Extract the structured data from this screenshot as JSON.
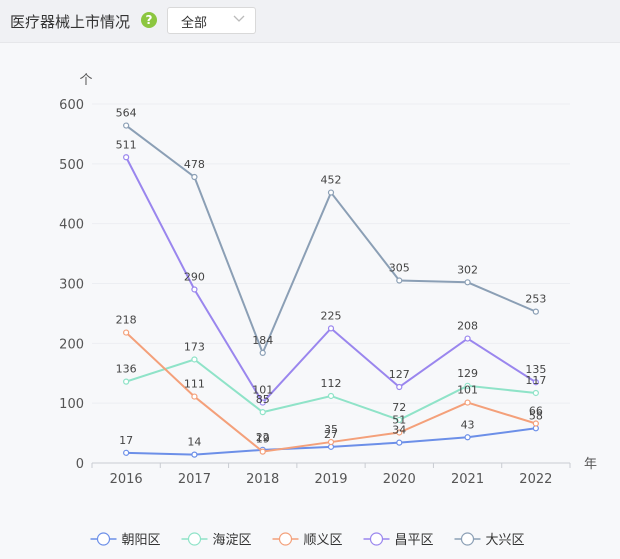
{
  "header": {
    "title": "医疗器械上市情况",
    "help_icon": "question-circle-icon",
    "filter": {
      "selected": "全部",
      "icon": "chevron-down-icon"
    }
  },
  "chart_data": {
    "type": "line",
    "ylabel": "个",
    "xlabel": "年",
    "ylim": [
      0,
      600
    ],
    "yticks": [
      0,
      100,
      200,
      300,
      400,
      500,
      600
    ],
    "x": [
      "2016",
      "2017",
      "2018",
      "2019",
      "2020",
      "2021",
      "2022"
    ],
    "grid": true,
    "legend_position": "bottom",
    "series": [
      {
        "name": "朝阳区",
        "color": "#6c8fe8",
        "values": [
          17,
          14,
          22,
          27,
          34,
          43,
          58
        ]
      },
      {
        "name": "海淀区",
        "color": "#8fe3c8",
        "values": [
          136,
          173,
          85,
          112,
          72,
          129,
          117
        ]
      },
      {
        "name": "顺义区",
        "color": "#f4a07a",
        "values": [
          218,
          111,
          19,
          35,
          51,
          101,
          66
        ]
      },
      {
        "name": "昌平区",
        "color": "#9a86ee",
        "values": [
          511,
          290,
          101,
          225,
          127,
          208,
          135
        ]
      },
      {
        "name": "大兴区",
        "color": "#8b9fb5",
        "values": [
          564,
          478,
          184,
          452,
          305,
          302,
          253
        ]
      }
    ]
  }
}
